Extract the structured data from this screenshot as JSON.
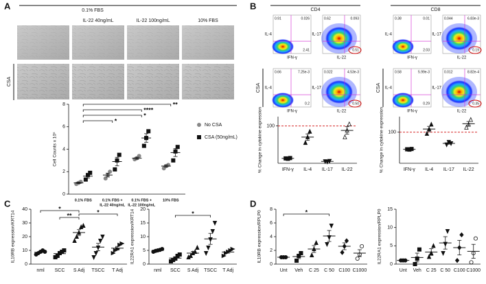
{
  "panel_labels": [
    "A",
    "B",
    "C",
    "D"
  ],
  "panel_a": {
    "header": "0.1% FBS",
    "columns": [
      "IL-22 40ng/mL",
      "IL-22 100ng/mL",
      "10% FBS"
    ],
    "row_label": "CSA"
  },
  "flow": {
    "groups": [
      {
        "title": "CD4",
        "row_label": "CSA",
        "rows": [
          [
            {
              "ylabel": "IL-4",
              "xlabel": "IFN-γ",
              "q": [
                "0.91",
                "0.026",
                "2.41"
              ]
            },
            {
              "ylabel": "IL-17",
              "xlabel": "IL-22",
              "q": [
                "0.62",
                "0.093",
                "0.51"
              ]
            }
          ],
          [
            {
              "ylabel": "IL-4",
              "xlabel": "IFN-γ",
              "q": [
                "0.66",
                "7.25e-3",
                "0.2"
              ]
            },
            {
              "ylabel": "IL-17",
              "xlabel": "IL-22",
              "q": [
                "0.022",
                "4.53e-3",
                "0.50"
              ]
            }
          ]
        ]
      },
      {
        "title": "CD8",
        "row_label": "CSA",
        "rows": [
          [
            {
              "ylabel": "IL-4",
              "xlabel": "IFN-γ",
              "q": [
                "0.38",
                "0.01",
                "2.03"
              ]
            },
            {
              "ylabel": "IL-17",
              "xlabel": "IL-22",
              "q": [
                "0.044",
                "6.83e-3",
                "0.19"
              ]
            }
          ],
          [
            {
              "ylabel": "IL-4",
              "xlabel": "IFN-γ",
              "q": [
                "0.58",
                "5.99e-3",
                "0.29"
              ]
            },
            {
              "ylabel": "IL-17",
              "xlabel": "IL-22",
              "q": [
                "0.012",
                "8.82e-4",
                "0.35"
              ]
            }
          ]
        ]
      }
    ]
  },
  "chart_data": [
    {
      "type": "dot",
      "ylabel": "Cell Counts x 10⁵",
      "categories": [
        [
          "0.1% FBS"
        ],
        [
          "0.1% FBS +",
          "IL-22 40ng/mL"
        ],
        [
          "0.1% FBS +",
          "IL-22 100ng/mL"
        ],
        [
          "10% FBS"
        ]
      ],
      "ylim": [
        0,
        8
      ],
      "yticks": [
        0,
        2,
        4,
        6,
        8
      ],
      "series": [
        {
          "name": "No CSA",
          "color": "#888888",
          "marker": "circle",
          "points": [
            [
              0.9,
              1.0,
              1.1
            ],
            [
              1.4,
              1.7,
              2.0
            ],
            [
              3.1,
              3.2,
              3.4
            ],
            [
              2.3,
              2.5,
              2.6
            ]
          ],
          "means": [
            1.0,
            1.7,
            3.2,
            2.5
          ],
          "sem": [
            0.06,
            0.17,
            0.09,
            0.09
          ]
        },
        {
          "name": "CSA (50ng/mL)",
          "color": "#111111",
          "marker": "square",
          "points": [
            [
              1.3,
              1.7,
              1.9
            ],
            [
              2.2,
              3.0,
              3.5
            ],
            [
              4.3,
              5.0,
              5.6
            ],
            [
              3.0,
              3.8,
              4.2
            ]
          ],
          "means": [
            1.6,
            2.9,
            5.0,
            3.7
          ],
          "sem": [
            0.18,
            0.38,
            0.38,
            0.35
          ]
        }
      ],
      "annotations": [
        "**",
        "****",
        "*",
        "*"
      ]
    },
    {
      "type": "dot",
      "ylabel": "% Change in cytokine expression",
      "categories": [
        "IFN-γ",
        "IL-4",
        "IL-17",
        "IL-22"
      ],
      "ylim": [
        0,
        125
      ],
      "yticks": [
        100
      ],
      "reference_color": "#d62728",
      "series": [
        {
          "color": "#111111",
          "markers": [
            "square",
            "triangle",
            "down-triangle",
            "triangle-open"
          ],
          "points": [
            [
              13,
              12,
              14
            ],
            [
              55,
              70,
              85
            ],
            [
              5,
              4,
              6
            ],
            [
              70,
              88,
              105
            ]
          ],
          "means": [
            13,
            70,
            5,
            88
          ],
          "sem": [
            0.6,
            8.7,
            0.6,
            10
          ]
        }
      ]
    },
    {
      "type": "dot",
      "ylabel": "% Change in cytokine expression",
      "categories": [
        "IFN-γ",
        "IL-4",
        "IL-17",
        "IL-22"
      ],
      "ylim": [
        0,
        150
      ],
      "yticks": [
        100
      ],
      "reference_color": "#d62728",
      "series": [
        {
          "color": "#111111",
          "markers": [
            "square",
            "triangle",
            "down-triangle",
            "triangle-open"
          ],
          "points": [
            [
              45,
              44,
              46
            ],
            [
              95,
              110,
              125
            ],
            [
              60,
              68,
              64
            ],
            [
              115,
              125,
              140
            ]
          ],
          "means": [
            45,
            110,
            64,
            127
          ],
          "sem": [
            0.6,
            8.7,
            2.3,
            7.3
          ]
        }
      ]
    },
    {
      "type": "dot",
      "ylabel": "IL10RB expression/KRT14",
      "categories": [
        "nml",
        "SCC",
        "S Adj",
        "TSCC",
        "T Adj"
      ],
      "ylim": [
        0,
        40
      ],
      "yticks": [
        0,
        10,
        20,
        30,
        40
      ],
      "series": [
        {
          "color": "#111111",
          "markers": [
            "circle",
            "square",
            "triangle",
            "down-triangle",
            "triangle-right"
          ],
          "points": [
            [
              7,
              8,
              9,
              10,
              9
            ],
            [
              5,
              6,
              8,
              9,
              10
            ],
            [
              17,
              20,
              23,
              27,
              28
            ],
            [
              5,
              8,
              12,
              17,
              20
            ],
            [
              8,
              10,
              11,
              14,
              15
            ]
          ],
          "means": [
            8.6,
            7.6,
            23,
            12.4,
            11.6
          ],
          "sem": [
            0.5,
            0.9,
            2.1,
            2.7,
            1.3
          ]
        }
      ],
      "annotations": [
        "*",
        "**",
        "*"
      ]
    },
    {
      "type": "dot",
      "ylabel": "IL22RA1 expression/KRT14",
      "categories": [
        "nml",
        "SCC",
        "S Adj",
        "TSCC",
        "T Adj"
      ],
      "ylim": [
        0,
        20
      ],
      "yticks": [
        0,
        5,
        10,
        15,
        20
      ],
      "series": [
        {
          "color": "#111111",
          "markers": [
            "circle",
            "square",
            "triangle",
            "down-triangle",
            "triangle-right"
          ],
          "points": [
            [
              4.5,
              4.8,
              5,
              5.2,
              5.5
            ],
            [
              1,
              1.5,
              2,
              3,
              3.5
            ],
            [
              2.5,
              3,
              4,
              4.5,
              6
            ],
            [
              4,
              6,
              9,
              12,
              15
            ],
            [
              3,
              4,
              4.5,
              5,
              5.5
            ]
          ],
          "means": [
            5,
            2.2,
            4,
            9.2,
            4.4
          ],
          "sem": [
            0.2,
            0.5,
            0.6,
            2,
            0.4
          ]
        }
      ],
      "annotations": [
        "*"
      ]
    },
    {
      "type": "dot",
      "ylabel": "IL10RB expression/RPLP0",
      "categories": [
        "Unt",
        "Veh",
        "C 25",
        "C 50",
        "C100",
        "C1000"
      ],
      "ylim": [
        0,
        8
      ],
      "yticks": [
        0,
        2,
        4,
        6,
        8
      ],
      "series": [
        {
          "color": "#111111",
          "markers": [
            "circle",
            "square",
            "triangle",
            "down-triangle",
            "diamond",
            "circle-open"
          ],
          "points": [
            [
              1,
              1,
              1
            ],
            [
              0.5,
              1.2,
              1.6
            ],
            [
              1.3,
              2.2,
              3.1
            ],
            [
              2.9,
              3.9,
              5.6
            ],
            [
              1.7,
              2.6,
              3.4
            ],
            [
              0.8,
              1.4,
              2.6
            ]
          ],
          "means": [
            1,
            1.1,
            2.2,
            4.1,
            2.6,
            1.6
          ],
          "sem": [
            0,
            0.3,
            0.5,
            0.8,
            0.5,
            0.5
          ]
        }
      ],
      "annotations": [
        "*"
      ]
    },
    {
      "type": "dot",
      "ylabel": "IL22RA1 expression/RPLP0",
      "categories": [
        "Unt",
        "Veh",
        "C 25",
        "C 50",
        "C100",
        "C1000"
      ],
      "ylim": [
        0,
        15
      ],
      "yticks": [
        0,
        5,
        10,
        15
      ],
      "series": [
        {
          "color": "#111111",
          "markers": [
            "circle",
            "square",
            "triangle",
            "down-triangle",
            "diamond",
            "circle-open"
          ],
          "points": [
            [
              1,
              1,
              1
            ],
            [
              0,
              1.5,
              4
            ],
            [
              2,
              3,
              5
            ],
            [
              3,
              5.5,
              9
            ],
            [
              1,
              4.5,
              8
            ],
            [
              0.5,
              3,
              7
            ]
          ],
          "means": [
            1,
            1.8,
            3.3,
            5.8,
            4.5,
            3.5
          ],
          "sem": [
            0,
            1.2,
            0.9,
            1.7,
            2,
            1.9
          ]
        }
      ]
    }
  ]
}
